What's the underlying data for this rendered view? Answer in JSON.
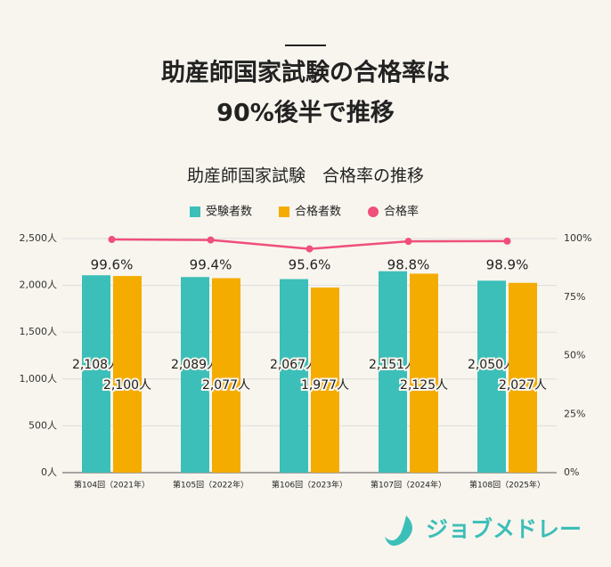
{
  "header": {
    "title_lines": [
      "助産師国家試験の合格率は",
      "90%後半で推移"
    ]
  },
  "chart_data": {
    "type": "bar",
    "title": "助産師国家試験　合格率の推移",
    "categories": [
      "第104回（2021年）",
      "第105回（2022年）",
      "第106回（2023年）",
      "第107回（2024年）",
      "第108回（2025年）"
    ],
    "series": [
      {
        "name": "受験者数",
        "color": "#3bbfb8",
        "values": [
          2108,
          2089,
          2067,
          2151,
          2050
        ],
        "value_labels": [
          "2,108人",
          "2,089人",
          "2,067人",
          "2,151人",
          "2,050人"
        ]
      },
      {
        "name": "合格者数",
        "color": "#f5ac00",
        "values": [
          2100,
          2077,
          1977,
          2125,
          2027
        ],
        "value_labels": [
          "2,100人",
          "2,077人",
          "1,977人",
          "2,125人",
          "2,027人"
        ]
      },
      {
        "name": "合格率",
        "type": "line",
        "axis": "y2",
        "color": "#ef4f7a",
        "values": [
          99.6,
          99.4,
          95.6,
          98.8,
          98.9
        ],
        "value_labels": [
          "99.6%",
          "99.4%",
          "95.6%",
          "98.8%",
          "98.9%"
        ]
      }
    ],
    "ylim": [
      0,
      2500
    ],
    "yticks": [
      {
        "value": 0,
        "label": "0人"
      },
      {
        "value": 500,
        "label": "500人"
      },
      {
        "value": 1000,
        "label": "1,000人"
      },
      {
        "value": 1500,
        "label": "1,500人"
      },
      {
        "value": 2000,
        "label": "2,000人"
      },
      {
        "value": 2500,
        "label": "2,500人"
      }
    ],
    "y2lim": [
      0,
      100
    ],
    "y2ticks": [
      {
        "value": 0,
        "label": "0%"
      },
      {
        "value": 25,
        "label": "25%"
      },
      {
        "value": 50,
        "label": "50%"
      },
      {
        "value": 75,
        "label": "75%"
      },
      {
        "value": 100,
        "label": "100%"
      }
    ],
    "grid": true,
    "legend": "top"
  },
  "footer": {
    "logo": "ジョブメドレー"
  }
}
